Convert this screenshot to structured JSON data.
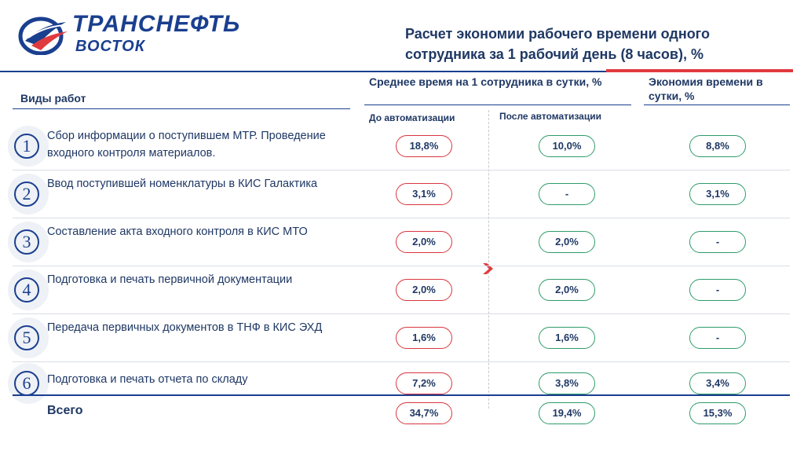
{
  "header": {
    "brand_line1": "ТРАНСНЕФТЬ",
    "brand_line2": "ВОСТОК",
    "title": "Расчет экономии рабочего времени одного сотрудника за 1 рабочий день (8 часов), %"
  },
  "columns": {
    "types": "Виды работ",
    "avg": "Среднее время на 1 сотрудника в сутки, %",
    "before": "До автоматизации",
    "after": "После автоматизации",
    "economy": "Экономия времени в сутки, %"
  },
  "rows": [
    {
      "num": "1",
      "label": "Сбор информации о поступившем МТР. Проведение входного контроля материалов.",
      "before": "18,8%",
      "after": "10,0%",
      "economy": "8,8%"
    },
    {
      "num": "2",
      "label": "Ввод поступившей номенклатуры в КИС Галактика",
      "before": "3,1%",
      "after": "-",
      "economy": "3,1%"
    },
    {
      "num": "3",
      "label": "Составление акта входного контроля в КИС МТО",
      "before": "2,0%",
      "after": "2,0%",
      "economy": "-"
    },
    {
      "num": "4",
      "label": "Подготовка и печать первичной документации",
      "before": "2,0%",
      "after": "2,0%",
      "economy": "-"
    },
    {
      "num": "5",
      "label": "Передача первичных документов в ТНФ в КИС ЭХД",
      "before": "1,6%",
      "after": "1,6%",
      "economy": "-"
    },
    {
      "num": "6",
      "label": "Подготовка и печать отчета по складу",
      "before": "7,2%",
      "after": "3,8%",
      "economy": "3,4%"
    }
  ],
  "total": {
    "label": "Всего",
    "before": "34,7%",
    "after": "19,4%",
    "economy": "15,3%"
  },
  "colors": {
    "brand": "#1a3f8f",
    "accent_red": "#e03a3e",
    "pill_red": "#d9363e",
    "pill_green": "#2e9c6a"
  }
}
